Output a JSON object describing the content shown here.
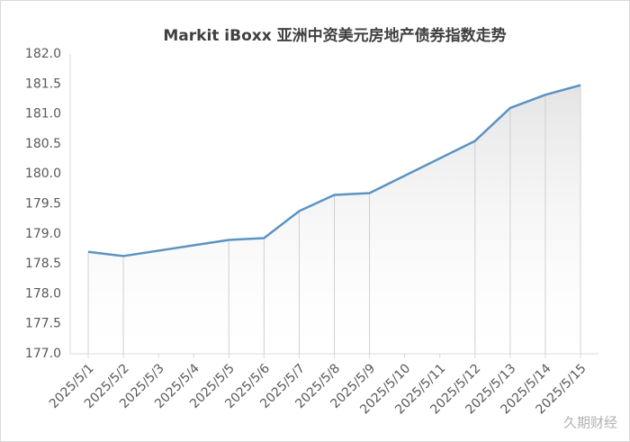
{
  "chart_data": {
    "type": "line",
    "title": "Markit iBoxx 亚洲中资美元房地产债券指数走势",
    "x": [
      "2025/5/1",
      "2025/5/2",
      "2025/5/5",
      "2025/5/6",
      "2025/5/7",
      "2025/5/8",
      "2025/5/9",
      "2025/5/12",
      "2025/5/13",
      "2025/5/14",
      "2025/5/15"
    ],
    "series": [
      {
        "color": "#5b93c2",
        "values": [
          178.7,
          178.63,
          178.9,
          178.93,
          179.38,
          179.65,
          179.68,
          180.55,
          181.1,
          181.32,
          181.48
        ]
      }
    ],
    "xticks": [
      "2025/5/1",
      "2025/5/2",
      "2025/5/3",
      "2025/5/4",
      "2025/5/5",
      "2025/5/6",
      "2025/5/7",
      "2025/5/8",
      "2025/5/9",
      "2025/5/10",
      "2025/5/11",
      "2025/5/12",
      "2025/5/13",
      "2025/5/14",
      "2025/5/15"
    ],
    "ylim": [
      177,
      182
    ],
    "yticks": [
      {
        "value": 177,
        "label": "177.0"
      },
      177.5,
      {
        "value": 178,
        "label": "178.0"
      },
      178.5,
      {
        "value": 179,
        "label": "179.0"
      },
      179.5,
      {
        "value": 180,
        "label": "180.0"
      },
      180.5,
      {
        "value": 181,
        "label": "181.0"
      },
      181.5,
      {
        "value": 182,
        "label": "182.0"
      }
    ],
    "drop_lines": true,
    "watermark": "久期财经"
  }
}
